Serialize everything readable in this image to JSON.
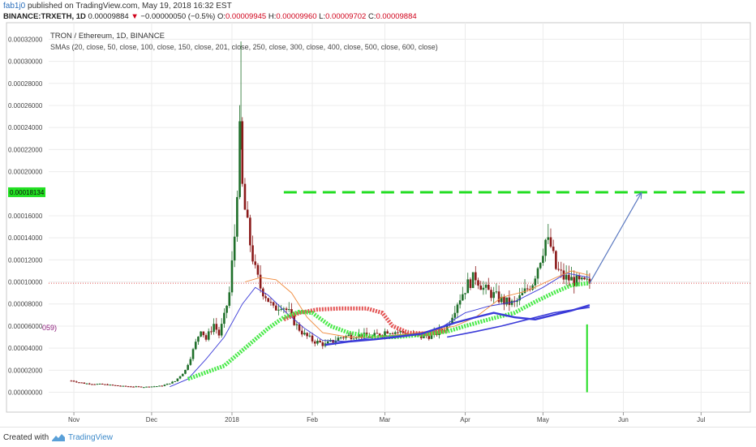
{
  "header": {
    "author": "fab1j0",
    "published_text": "published on TradingView.com, May 19, 2018 16:32 EST",
    "symbol": "BINANCE:TRXETH, 1D",
    "last": "0.00009884",
    "change_arrow": "▼",
    "change": "−0.00000050 (−0.5%)",
    "o_label": "O:",
    "o_value": "0.00009945",
    "h_label": "H:",
    "h_value": "0.00009960",
    "l_label": "L:",
    "l_value": "0.00009702",
    "c_label": "C:",
    "c_value": "0.00009884"
  },
  "footer": {
    "created_with": "Created with",
    "brand": "TradingView",
    "brand_icon": "tradingview-logo-icon"
  },
  "colors": {
    "candle_up": "#1f6f2a",
    "candle_down": "#8b1a1a",
    "sma_blue": "#3a3ad8",
    "sma_orange": "#f08a3c",
    "sma_red": "#e24848",
    "sma_green": "#3ee83e",
    "target_line": "#22dd22",
    "arrow": "#5a78c0",
    "price_line": "#e05050",
    "price_badge": "#22e022"
  },
  "chart_data": {
    "type": "candlestick",
    "title": "TRON / Ethereum, 1D, BINANCE",
    "indicator": "SMAs (20, close, 50, close, 100, close, 150, close, 201, close, 250, close, 300, close, 400, close, 500, close, 600, close)",
    "left_marker": "059)",
    "ylim": [
      -1.8e-05,
      0.000335
    ],
    "yticks": [
      "0.00032000",
      "0.00030000",
      "0.00028000",
      "0.00026000",
      "0.00024000",
      "0.00022000",
      "0.00020000",
      "0.00016000",
      "0.00014000",
      "0.00012000",
      "0.00010000",
      "0.00008000",
      "0.00006000",
      "0.00004000",
      "0.00002000",
      "0.00000000"
    ],
    "ytick_values": [
      0.00032,
      0.0003,
      0.00028,
      0.00026,
      0.00024,
      0.00022,
      0.0002,
      0.00016,
      0.00014,
      0.00012,
      0.0001,
      8e-05,
      6e-05,
      4e-05,
      2e-05,
      0.0
    ],
    "xlim": [
      "2017-10-06",
      "2018-07-20"
    ],
    "xticks": [
      {
        "date": "2017-11-01",
        "label": "Nov"
      },
      {
        "date": "2017-12-01",
        "label": "Dec"
      },
      {
        "date": "2018-01-01",
        "label": "2018"
      },
      {
        "date": "2018-02-01",
        "label": "Feb"
      },
      {
        "date": "2018-03-01",
        "label": "Mar"
      },
      {
        "date": "2018-04-01",
        "label": "Apr"
      },
      {
        "date": "2018-05-01",
        "label": "May"
      },
      {
        "date": "2018-06-01",
        "label": "Jun"
      },
      {
        "date": "2018-07-01",
        "label": "Jul"
      }
    ],
    "target_price": "0.00018134",
    "target_value": 0.00018134,
    "target_line": {
      "start": "2018-01-21",
      "end": "2018-07-20",
      "style": "dashed"
    },
    "current_price": 9.884e-05,
    "projection_arrow": {
      "start": [
        "2018-05-19",
        9.88e-05
      ],
      "end": [
        "2018-06-08",
        0.000181
      ]
    },
    "vertical_marker": {
      "date": "2018-05-18",
      "from": 0.0,
      "to": 6.15e-05
    },
    "price_path": [
      [
        "2017-10-31",
        1.05e-05
      ],
      [
        "2017-11-05",
        8e-06
      ],
      [
        "2017-11-12",
        7.2e-06
      ],
      [
        "2017-11-20",
        5.5e-06
      ],
      [
        "2017-11-28",
        4.8e-06
      ],
      [
        "2017-12-05",
        5.8e-06
      ],
      [
        "2017-12-10",
        1e-05
      ],
      [
        "2017-12-14",
        2e-05
      ],
      [
        "2017-12-17",
        3.8e-05
      ],
      [
        "2017-12-20",
        5.8e-05
      ],
      [
        "2017-12-22",
        4.8e-05
      ],
      [
        "2017-12-25",
        6.2e-05
      ],
      [
        "2017-12-27",
        5.2e-05
      ],
      [
        "2017-12-29",
        6.8e-05
      ],
      [
        "2017-12-31",
        9e-05
      ],
      [
        "2018-01-02",
        0.000142
      ],
      [
        "2018-01-04",
        0.000232
      ],
      [
        "2018-01-05",
        0.000185
      ],
      [
        "2018-01-06",
        0.000165
      ],
      [
        "2018-01-08",
        0.000135
      ],
      [
        "2018-01-10",
        0.00011
      ],
      [
        "2018-01-12",
        9.5e-05
      ],
      [
        "2018-01-14",
        8.8e-05
      ],
      [
        "2018-01-17",
        7.5e-05
      ],
      [
        "2018-01-20",
        8e-05
      ],
      [
        "2018-01-23",
        7.2e-05
      ],
      [
        "2018-01-26",
        6e-05
      ],
      [
        "2018-01-29",
        5.2e-05
      ],
      [
        "2018-02-01",
        4.7e-05
      ],
      [
        "2018-02-06",
        4.3e-05
      ],
      [
        "2018-02-12",
        5e-05
      ],
      [
        "2018-02-18",
        5.2e-05
      ],
      [
        "2018-02-24",
        5e-05
      ],
      [
        "2018-03-02",
        5.6e-05
      ],
      [
        "2018-03-08",
        5.4e-05
      ],
      [
        "2018-03-14",
        5e-05
      ],
      [
        "2018-03-20",
        5.2e-05
      ],
      [
        "2018-03-25",
        6e-05
      ],
      [
        "2018-03-29",
        8.2e-05
      ],
      [
        "2018-04-02",
        9.8e-05
      ],
      [
        "2018-04-05",
        0.000105
      ],
      [
        "2018-04-08",
        9.4e-05
      ],
      [
        "2018-04-12",
        8.8e-05
      ],
      [
        "2018-04-16",
        8.2e-05
      ],
      [
        "2018-04-20",
        8e-05
      ],
      [
        "2018-04-23",
        8.8e-05
      ],
      [
        "2018-04-27",
        0.0001
      ],
      [
        "2018-04-30",
        0.000122
      ],
      [
        "2018-05-02",
        0.000138
      ],
      [
        "2018-05-04",
        0.000132
      ],
      [
        "2018-05-06",
        0.000112
      ],
      [
        "2018-05-09",
        0.000104
      ],
      [
        "2018-05-12",
        0.000102
      ],
      [
        "2018-05-15",
        9.9e-05
      ],
      [
        "2018-05-19",
        9.88e-05
      ]
    ],
    "series": [
      {
        "color": "#3a3ad8",
        "style": "thin",
        "points": [
          [
            "2017-12-08",
            5e-06
          ],
          [
            "2017-12-15",
            1.2e-05
          ],
          [
            "2017-12-22",
            3e-05
          ],
          [
            "2017-12-29",
            5e-05
          ],
          [
            "2018-01-05",
            8e-05
          ],
          [
            "2018-01-10",
            9.5e-05
          ],
          [
            "2018-01-15",
            8.8e-05
          ],
          [
            "2018-01-22",
            7.2e-05
          ],
          [
            "2018-01-29",
            5.8e-05
          ],
          [
            "2018-02-05",
            4.7e-05
          ],
          [
            "2018-02-15",
            4.6e-05
          ],
          [
            "2018-02-25",
            5e-05
          ],
          [
            "2018-03-10",
            5.2e-05
          ],
          [
            "2018-03-20",
            5.5e-05
          ],
          [
            "2018-04-01",
            7.2e-05
          ],
          [
            "2018-04-10",
            7.8e-05
          ],
          [
            "2018-04-20",
            8.2e-05
          ],
          [
            "2018-05-01",
            9.5e-05
          ],
          [
            "2018-05-10",
            0.000108
          ],
          [
            "2018-05-19",
            0.000104
          ]
        ]
      },
      {
        "color": "#f08a3c",
        "style": "thin",
        "points": [
          [
            "2018-01-06",
            0.0001
          ],
          [
            "2018-01-12",
            0.000104
          ],
          [
            "2018-01-18",
            0.000102
          ],
          [
            "2018-01-24",
            9e-05
          ],
          [
            "2018-01-30",
            6.8e-05
          ],
          [
            "2018-02-05",
            5.4e-05
          ],
          [
            "2018-02-15",
            5e-05
          ],
          [
            "2018-02-25",
            5e-05
          ],
          [
            "2018-03-10",
            5.3e-05
          ],
          [
            "2018-03-20",
            5.6e-05
          ],
          [
            "2018-03-28",
            6e-05
          ],
          [
            "2018-04-05",
            6.8e-05
          ],
          [
            "2018-04-15",
            8.6e-05
          ],
          [
            "2018-04-25",
            9.2e-05
          ],
          [
            "2018-05-05",
            0.000103
          ],
          [
            "2018-05-12",
            0.00011
          ],
          [
            "2018-05-19",
            0.000106
          ]
        ]
      },
      {
        "color": "#e24848",
        "style": "dotted-thick",
        "points": [
          [
            "2018-01-21",
            6.6e-05
          ],
          [
            "2018-01-27",
            7.2e-05
          ],
          [
            "2018-02-03",
            7.5e-05
          ],
          [
            "2018-02-12",
            7.6e-05
          ],
          [
            "2018-02-22",
            7.6e-05
          ],
          [
            "2018-02-28",
            7.2e-05
          ],
          [
            "2018-03-04",
            6e-05
          ],
          [
            "2018-03-10",
            5.4e-05
          ],
          [
            "2018-03-18",
            5.3e-05
          ],
          [
            "2018-03-25",
            5.6e-05
          ]
        ]
      },
      {
        "color": "#3ee83e",
        "style": "dotted-thick",
        "points": [
          [
            "2017-12-15",
            1.2e-05
          ],
          [
            "2017-12-22",
            1.8e-05
          ],
          [
            "2017-12-29",
            2.4e-05
          ],
          [
            "2018-01-05",
            3.8e-05
          ],
          [
            "2018-01-10",
            4.8e-05
          ],
          [
            "2018-01-15",
            5.8e-05
          ],
          [
            "2018-01-21",
            6.8e-05
          ],
          [
            "2018-01-27",
            7.3e-05
          ],
          [
            "2018-02-01",
            7.2e-05
          ],
          [
            "2018-02-08",
            6e-05
          ],
          [
            "2018-02-15",
            5.4e-05
          ],
          [
            "2018-02-25",
            5e-05
          ],
          [
            "2018-03-05",
            5e-05
          ],
          [
            "2018-03-15",
            5.2e-05
          ],
          [
            "2018-03-25",
            5.5e-05
          ],
          [
            "2018-04-01",
            6e-05
          ],
          [
            "2018-04-10",
            6.6e-05
          ],
          [
            "2018-04-20",
            7.2e-05
          ],
          [
            "2018-04-28",
            8.2e-05
          ],
          [
            "2018-05-05",
            9e-05
          ],
          [
            "2018-05-12",
            9.7e-05
          ],
          [
            "2018-05-19",
            9.9e-05
          ]
        ]
      },
      {
        "color": "#3a3ad8",
        "style": "thick",
        "points": [
          [
            "2018-02-06",
            4.3e-05
          ],
          [
            "2018-02-15",
            4.6e-05
          ],
          [
            "2018-02-25",
            4.8e-05
          ],
          [
            "2018-03-05",
            5e-05
          ],
          [
            "2018-03-15",
            5.3e-05
          ],
          [
            "2018-03-28",
            6.3e-05
          ],
          [
            "2018-04-05",
            6.8e-05
          ],
          [
            "2018-04-12",
            7.2e-05
          ],
          [
            "2018-04-20",
            6.8e-05
          ],
          [
            "2018-04-28",
            6.6e-05
          ],
          [
            "2018-05-05",
            7e-05
          ],
          [
            "2018-05-12",
            7.4e-05
          ],
          [
            "2018-05-19",
            7.9e-05
          ]
        ]
      },
      {
        "color": "#3a3ad8",
        "style": "medium",
        "points": [
          [
            "2018-03-25",
            5e-05
          ],
          [
            "2018-04-05",
            5.5e-05
          ],
          [
            "2018-04-15",
            6e-05
          ],
          [
            "2018-04-25",
            6.6e-05
          ],
          [
            "2018-05-05",
            7.2e-05
          ],
          [
            "2018-05-19",
            7.7e-05
          ]
        ]
      }
    ]
  }
}
